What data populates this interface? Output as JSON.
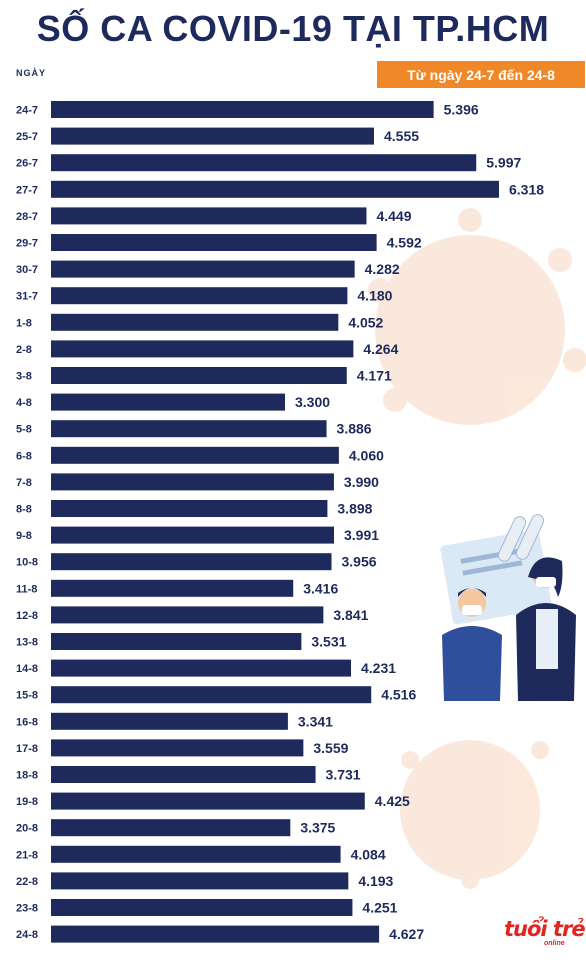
{
  "title": "SỐ CA COVID-19 TẠI TP.HCM",
  "subtitle": "Từ ngày 24-7 đến 24-8",
  "colors": {
    "bar": "#1f2a5c",
    "text": "#1f2a5c",
    "subtitle_bg": "#f0882a",
    "logo": "#e2251f",
    "virus": "#fbe5d6"
  },
  "logo": {
    "name": "tuoi-tre-online-logo",
    "text": "tuổi trẻ",
    "sub": "online"
  },
  "chart_data": {
    "type": "bar",
    "orientation": "horizontal",
    "xlabel": "",
    "ylabel": "NGÀY",
    "categories": [
      "24-7",
      "25-7",
      "26-7",
      "27-7",
      "28-7",
      "29-7",
      "30-7",
      "31-7",
      "1-8",
      "2-8",
      "3-8",
      "4-8",
      "5-8",
      "6-8",
      "7-8",
      "8-8",
      "9-8",
      "10-8",
      "11-8",
      "12-8",
      "13-8",
      "14-8",
      "15-8",
      "16-8",
      "17-8",
      "18-8",
      "19-8",
      "20-8",
      "21-8",
      "22-8",
      "23-8",
      "24-8"
    ],
    "values": [
      5396,
      4555,
      5997,
      6318,
      4449,
      4592,
      4282,
      4180,
      4052,
      4264,
      4171,
      3300,
      3886,
      4060,
      3990,
      3898,
      3991,
      3956,
      3416,
      3841,
      3531,
      4231,
      4516,
      3341,
      3559,
      3731,
      4425,
      3375,
      4084,
      4193,
      4251,
      4627
    ],
    "value_labels": [
      "5.396",
      "4.555",
      "5.997",
      "6.318",
      "4.449",
      "4.592",
      "4.282",
      "4.180",
      "4.052",
      "4.264",
      "4.171",
      "3.300",
      "3.886",
      "4.060",
      "3.990",
      "3.898",
      "3.991",
      "3.956",
      "3.416",
      "3.841",
      "3.531",
      "4.231",
      "4.516",
      "3.341",
      "3.559",
      "3.731",
      "4.425",
      "3.375",
      "4.084",
      "4.193",
      "4.251",
      "4.627"
    ],
    "xlim": [
      0,
      6318
    ],
    "grid": false,
    "legend": "none"
  }
}
